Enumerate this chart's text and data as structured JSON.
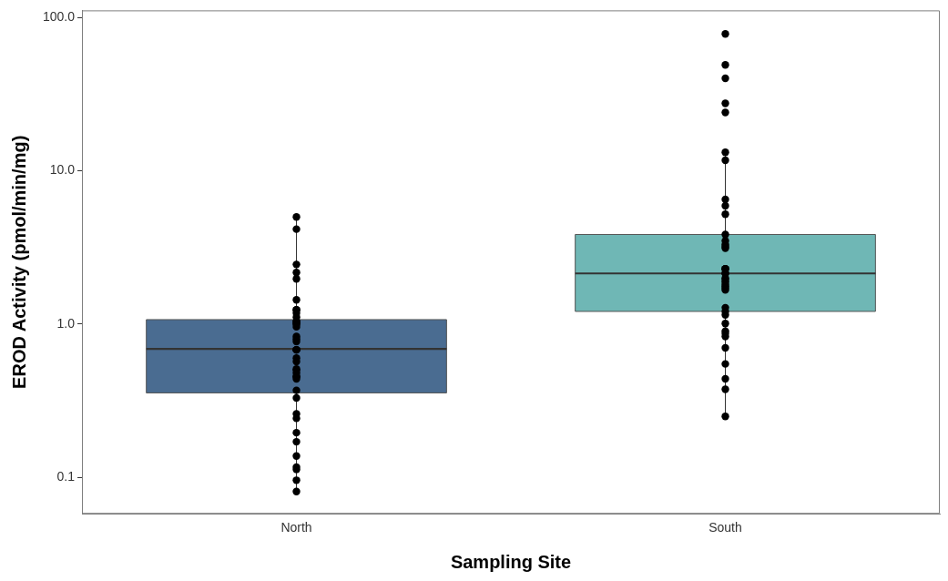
{
  "chart_data": {
    "type": "box",
    "xlabel": "Sampling Site",
    "ylabel": "EROD Activity (pmol/min/mg)",
    "categories": [
      "North",
      "South"
    ],
    "log": "y",
    "ylim": [
      0.058,
      111
    ],
    "yticks": [
      {
        "value": 0.1,
        "label": "0.1"
      },
      {
        "value": 1,
        "label": "1.0"
      },
      {
        "value": 10,
        "label": "10.0"
      },
      {
        "value": 100,
        "label": "100.0"
      }
    ],
    "grid": false,
    "legend": false,
    "marker": "circle",
    "series": [
      {
        "type": "box",
        "colors": [
          "#4a6c91",
          "#6fb7b5"
        ],
        "boxes": [
          {
            "low": 0.08,
            "q1": 0.356,
            "median": 0.69,
            "q3": 1.07,
            "high": 5.0
          },
          {
            "low": 0.25,
            "q1": 1.21,
            "median": 2.14,
            "q3": 3.84,
            "high": 13.2
          }
        ]
      },
      {
        "type": "scatter",
        "color": "#000000",
        "x": [
          "North",
          "North",
          "North",
          "North",
          "North",
          "North",
          "North",
          "North",
          "North",
          "North",
          "North",
          "North",
          "North",
          "North",
          "North",
          "North",
          "North",
          "North",
          "North",
          "North",
          "North",
          "North",
          "North",
          "North",
          "North",
          "North",
          "North",
          "North",
          "North",
          "North",
          "North",
          "North",
          "North",
          "North",
          "North",
          "North",
          "North",
          "North",
          "North",
          "North",
          "South",
          "South",
          "South",
          "South",
          "South",
          "South",
          "South",
          "South",
          "South",
          "South",
          "South",
          "South",
          "South",
          "South",
          "South",
          "South",
          "South",
          "South",
          "South",
          "South",
          "South",
          "South",
          "South",
          "South",
          "South",
          "South",
          "South",
          "South",
          "South",
          "South",
          "South",
          "South",
          "South",
          "South",
          "South",
          "South",
          "South",
          "South",
          "South"
        ],
        "values": [
          5.0,
          4.16,
          2.45,
          2.17,
          1.97,
          1.44,
          1.24,
          1.24,
          1.18,
          1.11,
          1.04,
          1.04,
          1.01,
          1.0,
          0.96,
          0.83,
          0.77,
          0.8,
          0.68,
          0.68,
          0.68,
          0.6,
          0.57,
          0.455,
          0.455,
          0.44,
          0.51,
          0.5,
          0.48,
          0.37,
          0.33,
          0.243,
          0.26,
          0.196,
          0.171,
          0.138,
          0.117,
          0.113,
          0.096,
          0.081,
          78,
          49,
          40,
          27.5,
          24,
          11.7,
          6.5,
          5.9,
          5.2,
          3.84,
          3.49,
          3.3,
          3.13,
          3.2,
          2.29,
          2.29,
          2.29,
          2.14,
          2.14,
          1.99,
          1.89,
          1.95,
          1.82,
          1.72,
          1.77,
          1.67,
          1.28,
          1.21,
          1.15,
          1.01,
          0.9,
          0.87,
          0.83,
          0.7,
          0.55,
          0.44,
          0.376,
          0.25,
          13.2
        ]
      }
    ]
  }
}
